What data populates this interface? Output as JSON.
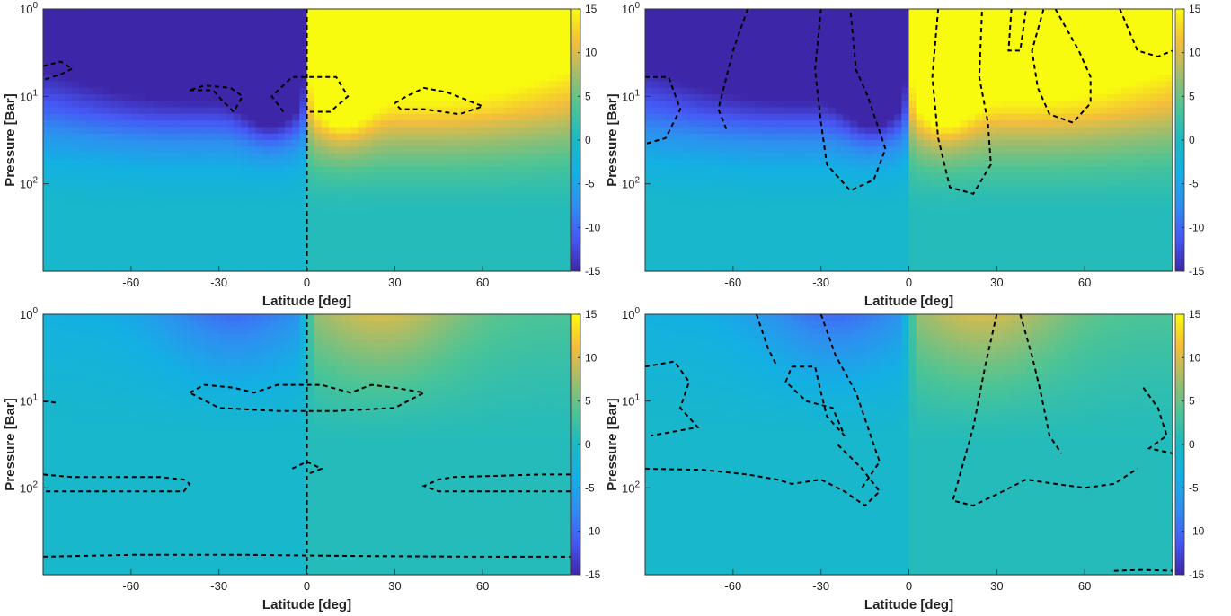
{
  "chart_data": [
    {
      "type": "heatmap",
      "panel": "top-left",
      "xlabel": "Latitude [deg]",
      "ylabel": "Pressure [Bar]",
      "x_ticks": [
        -60,
        -30,
        0,
        30,
        60
      ],
      "xlim": [
        -90,
        90
      ],
      "ylim": [
        1,
        1000
      ],
      "y_scale": "log",
      "y_direction": "reversed",
      "y_ticks": [
        "10^0",
        "10^1",
        "10^2"
      ],
      "colorbar": {
        "ticks": [
          15,
          10,
          5,
          0,
          -5,
          -10,
          -15
        ],
        "range": [
          -15,
          15
        ],
        "colormap": "parula"
      },
      "field": {
        "amplitude": 15,
        "surface_p": 3.2,
        "depth_p": 25,
        "equator_jet": true
      },
      "dashed_contours": [
        [
          [
            -90,
            4.5
          ],
          [
            -84,
            4
          ],
          [
            -80,
            4.8
          ],
          [
            -84,
            5.6
          ],
          [
            -90,
            6.5
          ]
        ],
        [
          [
            -40,
            8.5
          ],
          [
            -32,
            8.5
          ],
          [
            -29,
            11
          ],
          [
            -25,
            15
          ],
          [
            -22,
            10
          ],
          [
            -26,
            8
          ],
          [
            -35,
            7.5
          ],
          [
            -40,
            8.5
          ]
        ],
        [
          [
            -8,
            15
          ],
          [
            -12,
            10
          ],
          [
            -5,
            6
          ],
          [
            10,
            6
          ],
          [
            14,
            10
          ],
          [
            8,
            15
          ],
          [
            0,
            15
          ]
        ],
        [
          [
            0,
            1
          ],
          [
            0,
            1000
          ]
        ],
        [
          [
            30,
            12
          ],
          [
            34,
            10
          ],
          [
            40,
            8
          ],
          [
            48,
            9
          ],
          [
            60,
            13
          ],
          [
            52,
            16
          ],
          [
            40,
            14
          ],
          [
            32,
            14
          ],
          [
            30,
            12
          ]
        ]
      ]
    },
    {
      "type": "heatmap",
      "panel": "top-right",
      "xlabel": "Latitude [deg]",
      "ylabel": "Pressure [Bar]",
      "x_ticks": [
        -60,
        -30,
        0,
        30,
        60
      ],
      "xlim": [
        -90,
        90
      ],
      "ylim": [
        1,
        1000
      ],
      "y_scale": "log",
      "y_direction": "reversed",
      "y_ticks": [
        "10^0",
        "10^1",
        "10^2"
      ],
      "colorbar": {
        "ticks": [
          15,
          10,
          5,
          0,
          -5,
          -10,
          -15
        ],
        "range": [
          -15,
          15
        ],
        "colormap": "parula"
      },
      "field": {
        "amplitude": 15,
        "surface_p": 3.2,
        "depth_p": 40,
        "equator_jet": true
      },
      "dashed_contours": [
        [
          [
            -90,
            6
          ],
          [
            -82,
            6
          ],
          [
            -78,
            14
          ],
          [
            -83,
            30
          ],
          [
            -90,
            35
          ]
        ],
        [
          [
            -55,
            1
          ],
          [
            -60,
            3
          ],
          [
            -65,
            14
          ],
          [
            -62,
            25
          ]
        ],
        [
          [
            -30,
            1
          ],
          [
            -32,
            5
          ],
          [
            -30,
            20
          ],
          [
            -28,
            60
          ],
          [
            -20,
            120
          ],
          [
            -12,
            90
          ],
          [
            -8,
            40
          ],
          [
            -14,
            10
          ],
          [
            -18,
            5
          ],
          [
            -20,
            1
          ]
        ],
        [
          [
            10,
            1
          ],
          [
            8,
            6
          ],
          [
            10,
            30
          ],
          [
            14,
            110
          ],
          [
            22,
            130
          ],
          [
            28,
            60
          ],
          [
            27,
            20
          ],
          [
            24,
            6
          ],
          [
            25,
            1
          ]
        ],
        [
          [
            35,
            1
          ],
          [
            34,
            3
          ],
          [
            38,
            3
          ],
          [
            40,
            1
          ]
        ],
        [
          [
            50,
            1
          ],
          [
            58,
            3
          ],
          [
            62,
            6
          ],
          [
            62,
            12
          ],
          [
            56,
            20
          ],
          [
            48,
            16
          ],
          [
            44,
            8
          ],
          [
            42,
            3
          ],
          [
            46,
            1
          ]
        ],
        [
          [
            72,
            1
          ],
          [
            78,
            3
          ],
          [
            85,
            3.5
          ],
          [
            90,
            3
          ]
        ]
      ]
    },
    {
      "type": "heatmap",
      "panel": "bottom-left",
      "xlabel": "Latitude [deg]",
      "ylabel": "Pressure [Bar]",
      "x_ticks": [
        -60,
        -30,
        0,
        30,
        60
      ],
      "xlim": [
        -90,
        90
      ],
      "ylim": [
        1,
        1000
      ],
      "y_scale": "log",
      "y_direction": "reversed",
      "y_ticks": [
        "10^0",
        "10^1",
        "10^2"
      ],
      "colorbar": {
        "ticks": [
          15,
          10,
          5,
          0,
          -5,
          -10,
          -15
        ],
        "range": [
          -15,
          15
        ],
        "colormap": "parula"
      },
      "field": {
        "amplitude": 9,
        "surface_p": 1,
        "depth_p": 30,
        "equator_jet": false
      },
      "dashed_contours": [
        [
          [
            -90,
            10
          ],
          [
            -85,
            10.5
          ]
        ],
        [
          [
            -40,
            8
          ],
          [
            -35,
            6.5
          ],
          [
            -25,
            7
          ],
          [
            -18,
            8
          ],
          [
            -10,
            6.5
          ],
          [
            5,
            6.5
          ],
          [
            15,
            8
          ],
          [
            22,
            6.5
          ],
          [
            30,
            7
          ],
          [
            40,
            8
          ],
          [
            30,
            12
          ],
          [
            10,
            13
          ],
          [
            -10,
            13
          ],
          [
            -30,
            12
          ],
          [
            -40,
            8
          ]
        ],
        [
          [
            0,
            1
          ],
          [
            0,
            1000
          ]
        ],
        [
          [
            -90,
            70
          ],
          [
            -80,
            75
          ],
          [
            -50,
            75
          ],
          [
            -42,
            80
          ],
          [
            -40,
            90
          ],
          [
            -42,
            110
          ],
          [
            -80,
            110
          ],
          [
            -90,
            110
          ]
        ],
        [
          [
            -5,
            60
          ],
          [
            0,
            50
          ],
          [
            5,
            60
          ],
          [
            0,
            70
          ]
        ],
        [
          [
            90,
            70
          ],
          [
            80,
            70
          ],
          [
            50,
            75
          ],
          [
            45,
            80
          ],
          [
            40,
            95
          ],
          [
            45,
            110
          ],
          [
            80,
            110
          ],
          [
            90,
            110
          ]
        ],
        [
          [
            -90,
            620
          ],
          [
            -60,
            590
          ],
          [
            -20,
            590
          ],
          [
            20,
            610
          ],
          [
            60,
            620
          ],
          [
            90,
            620
          ]
        ]
      ]
    },
    {
      "type": "heatmap",
      "panel": "bottom-right",
      "xlabel": "Latitude [deg]",
      "ylabel": "Pressure [Bar]",
      "x_ticks": [
        -60,
        -30,
        0,
        30,
        60
      ],
      "xlim": [
        -90,
        90
      ],
      "ylim": [
        1,
        1000
      ],
      "y_scale": "log",
      "y_direction": "reversed",
      "y_ticks": [
        "10^0",
        "10^1",
        "10^2"
      ],
      "colorbar": {
        "ticks": [
          15,
          10,
          5,
          0,
          -5,
          -10,
          -15
        ],
        "range": [
          -15,
          15
        ],
        "colormap": "parula"
      },
      "field": {
        "amplitude": 9,
        "surface_p": 1,
        "depth_p": 30,
        "equator_jet": false
      },
      "dashed_contours": [
        [
          [
            -90,
            4
          ],
          [
            -80,
            3.5
          ],
          [
            -75,
            6
          ],
          [
            -78,
            12
          ],
          [
            -72,
            20
          ],
          [
            -88,
            25
          ]
        ],
        [
          [
            -52,
            1
          ],
          [
            -48,
            2.5
          ],
          [
            -45,
            4
          ]
        ],
        [
          [
            -40,
            4
          ],
          [
            -32,
            4
          ],
          [
            -30,
            8
          ],
          [
            -28,
            15
          ],
          [
            -22,
            25
          ],
          [
            -26,
            12
          ],
          [
            -35,
            10
          ],
          [
            -42,
            6
          ],
          [
            -40,
            4
          ]
        ],
        [
          [
            -90,
            60
          ],
          [
            -70,
            62
          ],
          [
            -55,
            70
          ],
          [
            -45,
            80
          ],
          [
            -40,
            90
          ],
          [
            -30,
            80
          ],
          [
            -22,
            110
          ],
          [
            -15,
            160
          ],
          [
            -10,
            110
          ],
          [
            -16,
            60
          ],
          [
            -25,
            30
          ]
        ],
        [
          [
            -30,
            1
          ],
          [
            -25,
            3
          ],
          [
            -18,
            8
          ],
          [
            -14,
            20
          ],
          [
            -10,
            50
          ],
          [
            -16,
            100
          ]
        ],
        [
          [
            30,
            1
          ],
          [
            26,
            4
          ],
          [
            22,
            20
          ],
          [
            18,
            60
          ],
          [
            15,
            140
          ],
          [
            22,
            160
          ],
          [
            32,
            110
          ],
          [
            40,
            80
          ],
          [
            50,
            90
          ],
          [
            60,
            100
          ],
          [
            70,
            90
          ],
          [
            78,
            60
          ]
        ],
        [
          [
            38,
            1
          ],
          [
            42,
            3
          ],
          [
            45,
            8
          ],
          [
            48,
            25
          ],
          [
            52,
            40
          ]
        ],
        [
          [
            80,
            7
          ],
          [
            85,
            12
          ],
          [
            88,
            25
          ],
          [
            82,
            35
          ],
          [
            90,
            40
          ]
        ],
        [
          [
            70,
            900
          ],
          [
            80,
            880
          ],
          [
            90,
            900
          ]
        ]
      ]
    }
  ]
}
